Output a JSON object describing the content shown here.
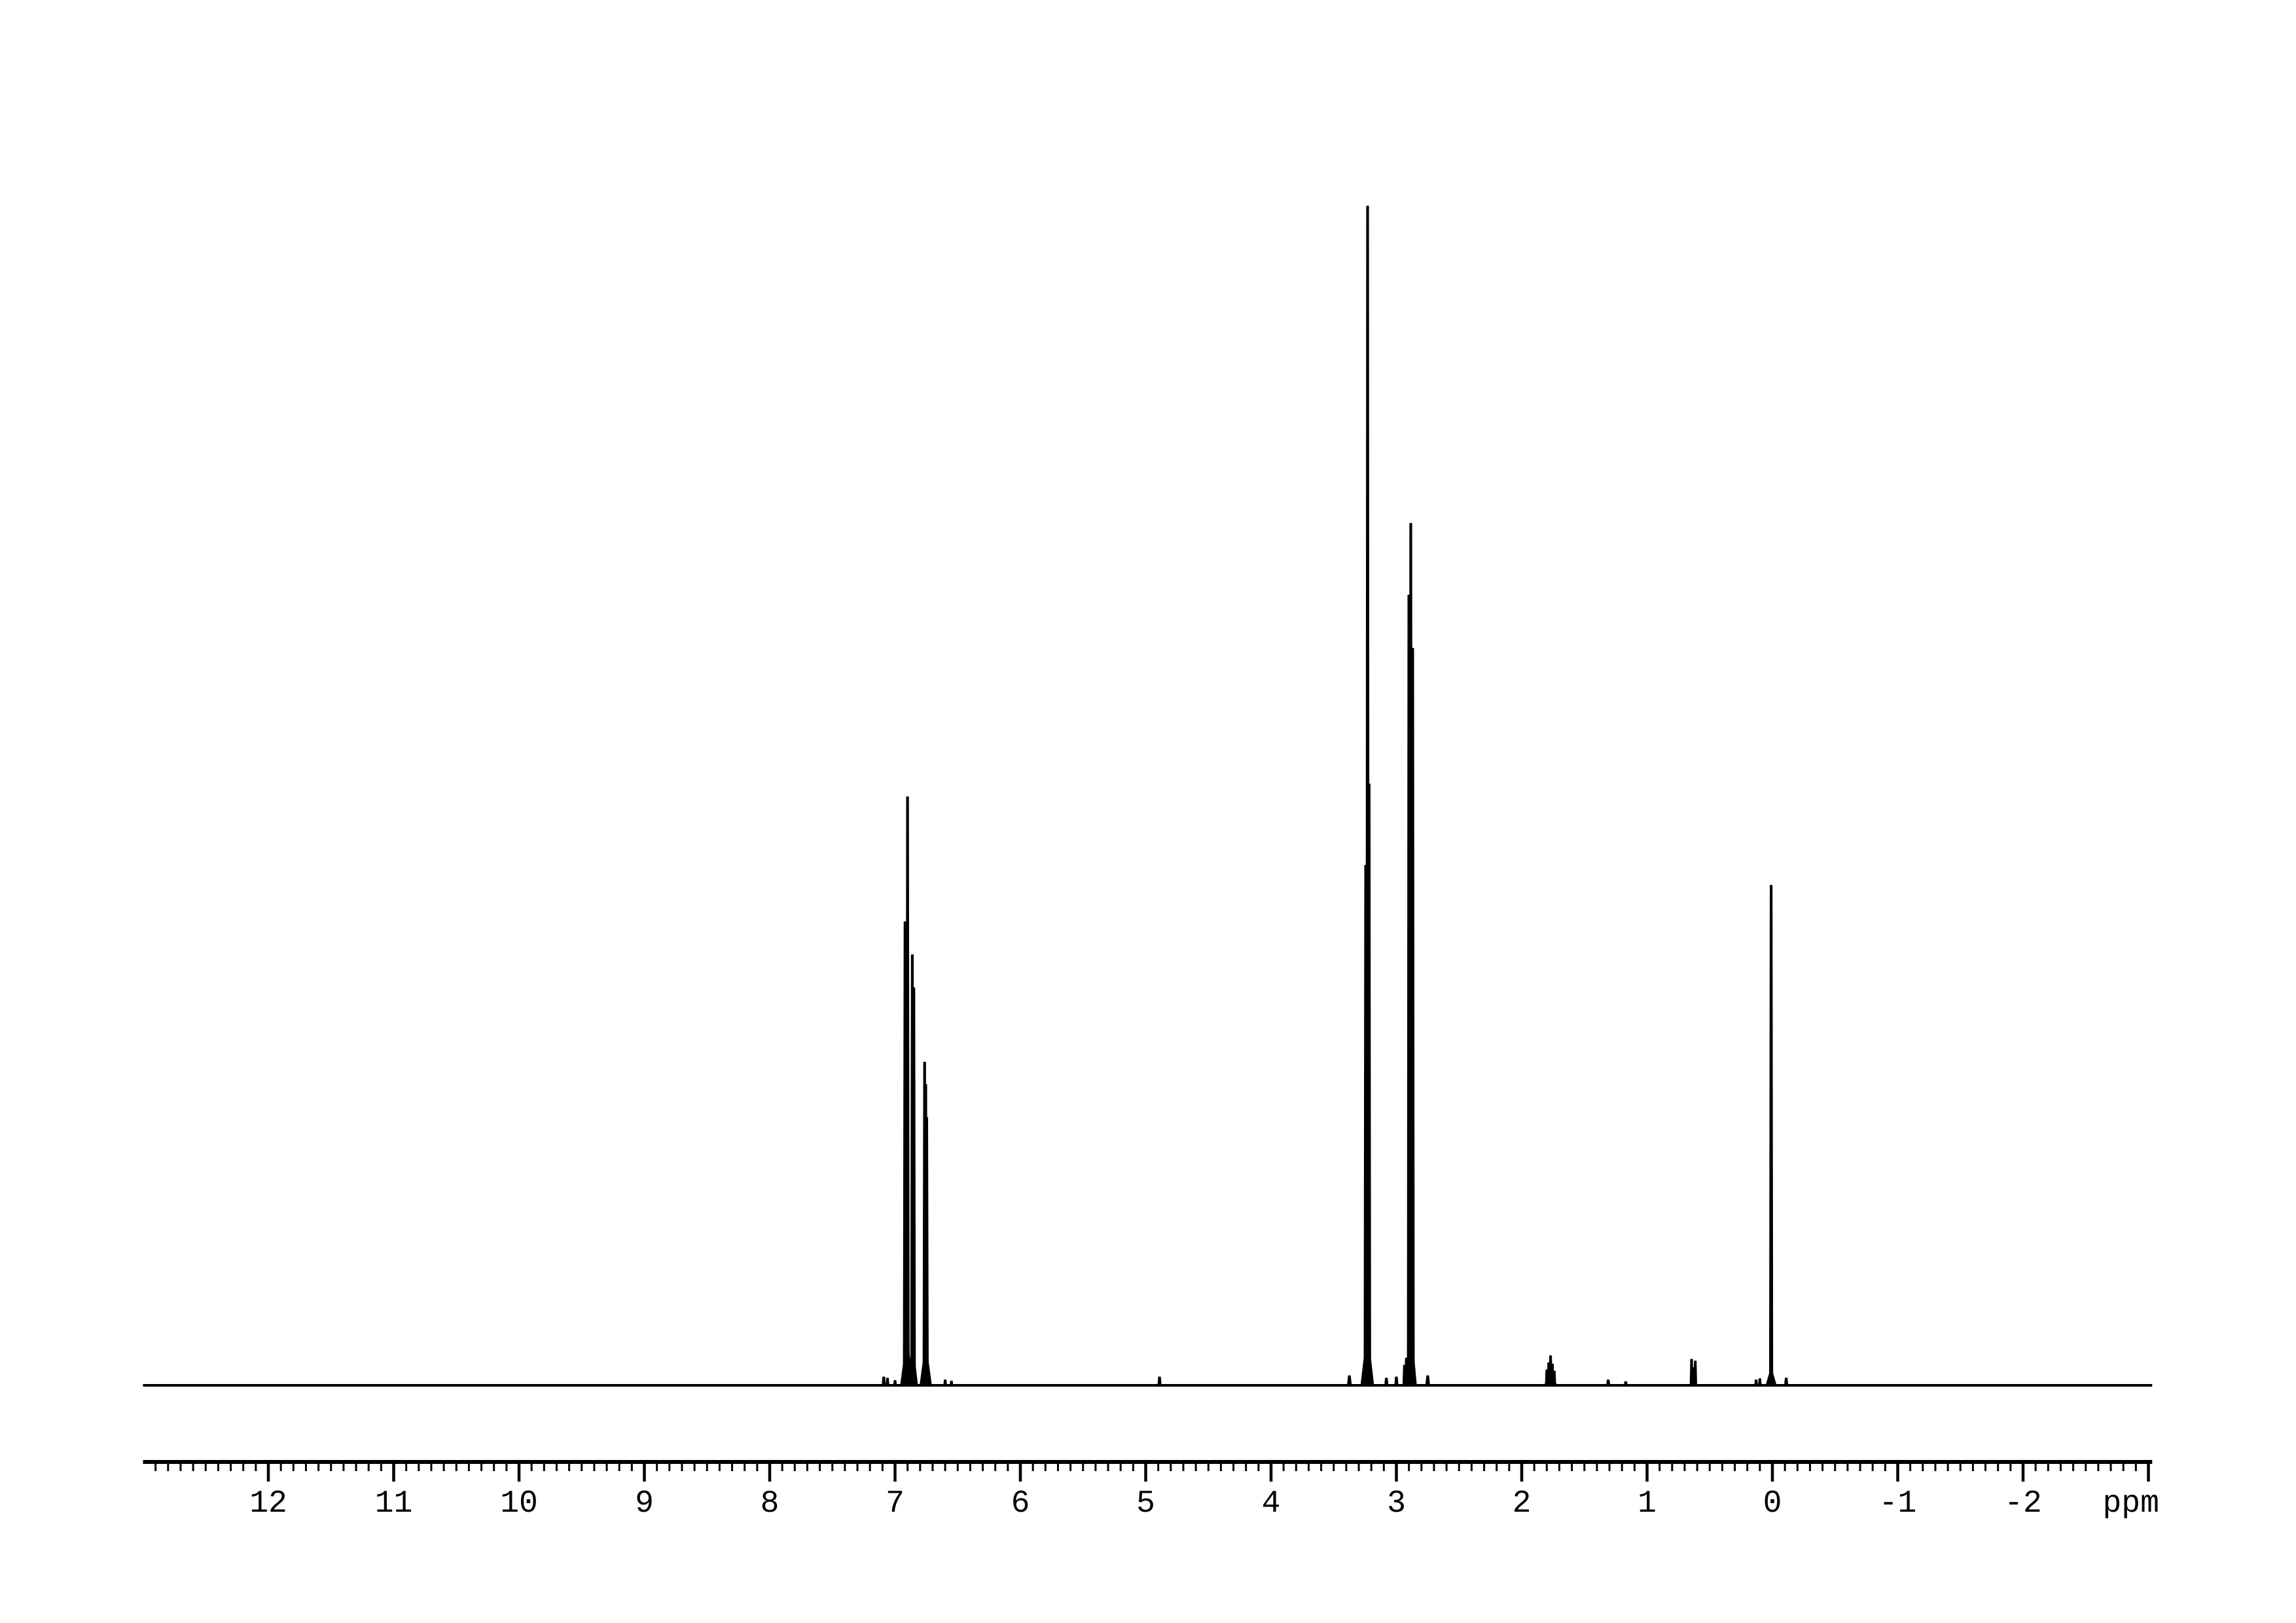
{
  "page": {
    "background_color": "#ffffff",
    "title": ""
  },
  "chart_data": {
    "type": "line",
    "subtype": "1H-NMR-spectrum",
    "title": "",
    "xlabel": "ppm",
    "ylabel": "",
    "legend": "none",
    "grid": "off",
    "ink_color": "#000000",
    "background_color": "#ffffff",
    "x_axis": {
      "unit_label": "ppm",
      "inverted": true,
      "max_ppm": 13.0,
      "min_ppm": -3.03,
      "major_tick_step": 1.0,
      "minor_tick_step": 0.1,
      "first_minor_tick_ppm": 12.9,
      "last_long_tick_ppm": -3.0,
      "unit_label_ppm_position": -2.86,
      "tick_labels": [
        {
          "value": 12,
          "label": "12"
        },
        {
          "value": 11,
          "label": "11"
        },
        {
          "value": 10,
          "label": "10"
        },
        {
          "value": 9,
          "label": "9"
        },
        {
          "value": 8,
          "label": "8"
        },
        {
          "value": 7,
          "label": "7"
        },
        {
          "value": 6,
          "label": "6"
        },
        {
          "value": 5,
          "label": "5"
        },
        {
          "value": 4,
          "label": "4"
        },
        {
          "value": 3,
          "label": "3"
        },
        {
          "value": 2,
          "label": "2"
        },
        {
          "value": 1,
          "label": "1"
        },
        {
          "value": 0,
          "label": "0"
        },
        {
          "value": -1,
          "label": "-1"
        },
        {
          "value": -2,
          "label": "-2"
        }
      ]
    },
    "y_axis": {
      "shown": false
    },
    "prominent_peaks_ppm": [
      6.9,
      6.86,
      6.76,
      3.23,
      2.89,
      1.77,
      0.63,
      0.0
    ],
    "tallest_peak_ppm": 3.23,
    "peaks": [
      {
        "ppm": 7.09,
        "rel_height": 0.007,
        "half_width_ppm": 0.012
      },
      {
        "ppm": 7.06,
        "rel_height": 0.006,
        "half_width_ppm": 0.01
      },
      {
        "ppm": 7.0,
        "rel_height": 0.004,
        "half_width_ppm": 0.01
      },
      {
        "ppm": 6.92,
        "rel_height": 0.393,
        "half_width_ppm": 0.013
      },
      {
        "ppm": 6.9,
        "rel_height": 0.499,
        "half_width_ppm": 0.013
      },
      {
        "ppm": 6.905,
        "rel_height": 0.035,
        "half_width_ppm": 0.05
      },
      {
        "ppm": 6.862,
        "rel_height": 0.365,
        "half_width_ppm": 0.012
      },
      {
        "ppm": 6.85,
        "rel_height": 0.337,
        "half_width_ppm": 0.012
      },
      {
        "ppm": 6.856,
        "rel_height": 0.025,
        "half_width_ppm": 0.035
      },
      {
        "ppm": 6.764,
        "rel_height": 0.274,
        "half_width_ppm": 0.012
      },
      {
        "ppm": 6.755,
        "rel_height": 0.255,
        "half_width_ppm": 0.012
      },
      {
        "ppm": 6.747,
        "rel_height": 0.227,
        "half_width_ppm": 0.012
      },
      {
        "ppm": 6.755,
        "rel_height": 0.03,
        "half_width_ppm": 0.045
      },
      {
        "ppm": 6.6,
        "rel_height": 0.0045,
        "half_width_ppm": 0.01
      },
      {
        "ppm": 6.55,
        "rel_height": 0.0035,
        "half_width_ppm": 0.01
      },
      {
        "ppm": 4.89,
        "rel_height": 0.007,
        "half_width_ppm": 0.012
      },
      {
        "ppm": 3.375,
        "rel_height": 0.008,
        "half_width_ppm": 0.015
      },
      {
        "ppm": 3.245,
        "rel_height": 0.441,
        "half_width_ppm": 0.012
      },
      {
        "ppm": 3.23,
        "rel_height": 1.0,
        "half_width_ppm": 0.013
      },
      {
        "ppm": 3.218,
        "rel_height": 0.51,
        "half_width_ppm": 0.012
      },
      {
        "ppm": 3.232,
        "rel_height": 0.04,
        "half_width_ppm": 0.05
      },
      {
        "ppm": 3.08,
        "rel_height": 0.006,
        "half_width_ppm": 0.012
      },
      {
        "ppm": 3.0,
        "rel_height": 0.007,
        "half_width_ppm": 0.012
      },
      {
        "ppm": 2.935,
        "rel_height": 0.017,
        "half_width_ppm": 0.012
      },
      {
        "ppm": 2.92,
        "rel_height": 0.023,
        "half_width_ppm": 0.012
      },
      {
        "ppm": 2.9,
        "rel_height": 0.67,
        "half_width_ppm": 0.012
      },
      {
        "ppm": 2.885,
        "rel_height": 0.731,
        "half_width_ppm": 0.013
      },
      {
        "ppm": 2.87,
        "rel_height": 0.625,
        "half_width_ppm": 0.012
      },
      {
        "ppm": 2.886,
        "rel_height": 0.045,
        "half_width_ppm": 0.045
      },
      {
        "ppm": 2.75,
        "rel_height": 0.008,
        "half_width_ppm": 0.015
      },
      {
        "ppm": 1.8,
        "rel_height": 0.013,
        "half_width_ppm": 0.01
      },
      {
        "ppm": 1.785,
        "rel_height": 0.019,
        "half_width_ppm": 0.01
      },
      {
        "ppm": 1.77,
        "rel_height": 0.025,
        "half_width_ppm": 0.011
      },
      {
        "ppm": 1.755,
        "rel_height": 0.018,
        "half_width_ppm": 0.01
      },
      {
        "ppm": 1.74,
        "rel_height": 0.012,
        "half_width_ppm": 0.01
      },
      {
        "ppm": 1.77,
        "rel_height": 0.008,
        "half_width_ppm": 0.05
      },
      {
        "ppm": 1.31,
        "rel_height": 0.0045,
        "half_width_ppm": 0.012
      },
      {
        "ppm": 1.17,
        "rel_height": 0.003,
        "half_width_ppm": 0.012
      },
      {
        "ppm": 0.645,
        "rel_height": 0.022,
        "half_width_ppm": 0.009
      },
      {
        "ppm": 0.63,
        "rel_height": 0.015,
        "half_width_ppm": 0.008
      },
      {
        "ppm": 0.615,
        "rel_height": 0.0205,
        "half_width_ppm": 0.009
      },
      {
        "ppm": 0.13,
        "rel_height": 0.0045,
        "half_width_ppm": 0.01
      },
      {
        "ppm": 0.1,
        "rel_height": 0.0055,
        "half_width_ppm": 0.01
      },
      {
        "ppm": 0.01,
        "rel_height": 0.424,
        "half_width_ppm": 0.012
      },
      {
        "ppm": 0.01,
        "rel_height": 0.012,
        "half_width_ppm": 0.04
      },
      {
        "ppm": -0.11,
        "rel_height": 0.006,
        "half_width_ppm": 0.012
      }
    ]
  }
}
